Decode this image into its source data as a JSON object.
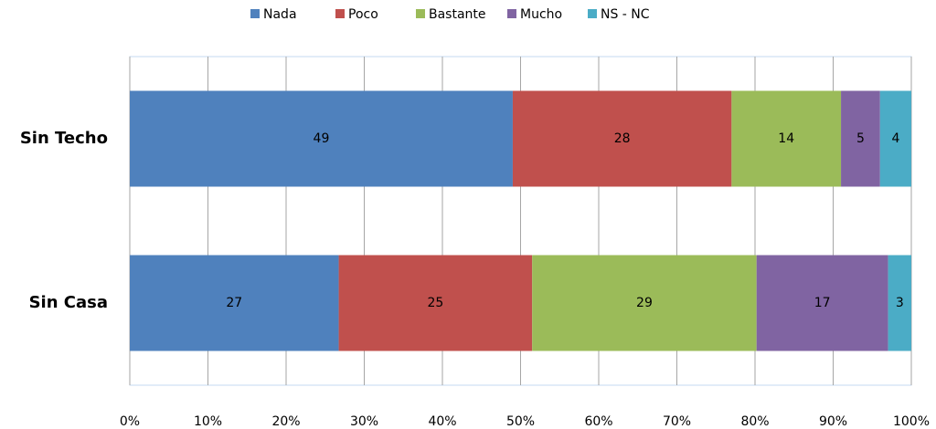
{
  "chart_data": {
    "type": "bar",
    "orientation": "horizontal",
    "stacking": "percent",
    "categories": [
      "Sin Techo",
      "Sin Casa"
    ],
    "series": [
      {
        "name": "Nada",
        "color": "#4f81bd",
        "values": [
          49,
          27
        ]
      },
      {
        "name": "Poco",
        "color": "#c0504d",
        "values": [
          28,
          25
        ]
      },
      {
        "name": "Bastante",
        "color": "#9bbb59",
        "values": [
          14,
          29
        ]
      },
      {
        "name": "Mucho",
        "color": "#8064a2",
        "values": [
          5,
          17
        ]
      },
      {
        "name": "NS - NC",
        "color": "#4bacc6",
        "values": [
          4,
          3
        ]
      }
    ],
    "xlim": [
      0,
      100
    ],
    "xticks": [
      {
        "value": 0,
        "label": "0%"
      },
      {
        "value": 10,
        "label": "10%"
      },
      {
        "value": 20,
        "label": "20%"
      },
      {
        "value": 30,
        "label": "30%"
      },
      {
        "value": 40,
        "label": "40%"
      },
      {
        "value": 50,
        "label": "50%"
      },
      {
        "value": 60,
        "label": "60%"
      },
      {
        "value": 70,
        "label": "70%"
      },
      {
        "value": 80,
        "label": "80%"
      },
      {
        "value": 90,
        "label": "90%"
      },
      {
        "value": 100,
        "label": "100%"
      }
    ],
    "grid": true,
    "legend": "top"
  }
}
